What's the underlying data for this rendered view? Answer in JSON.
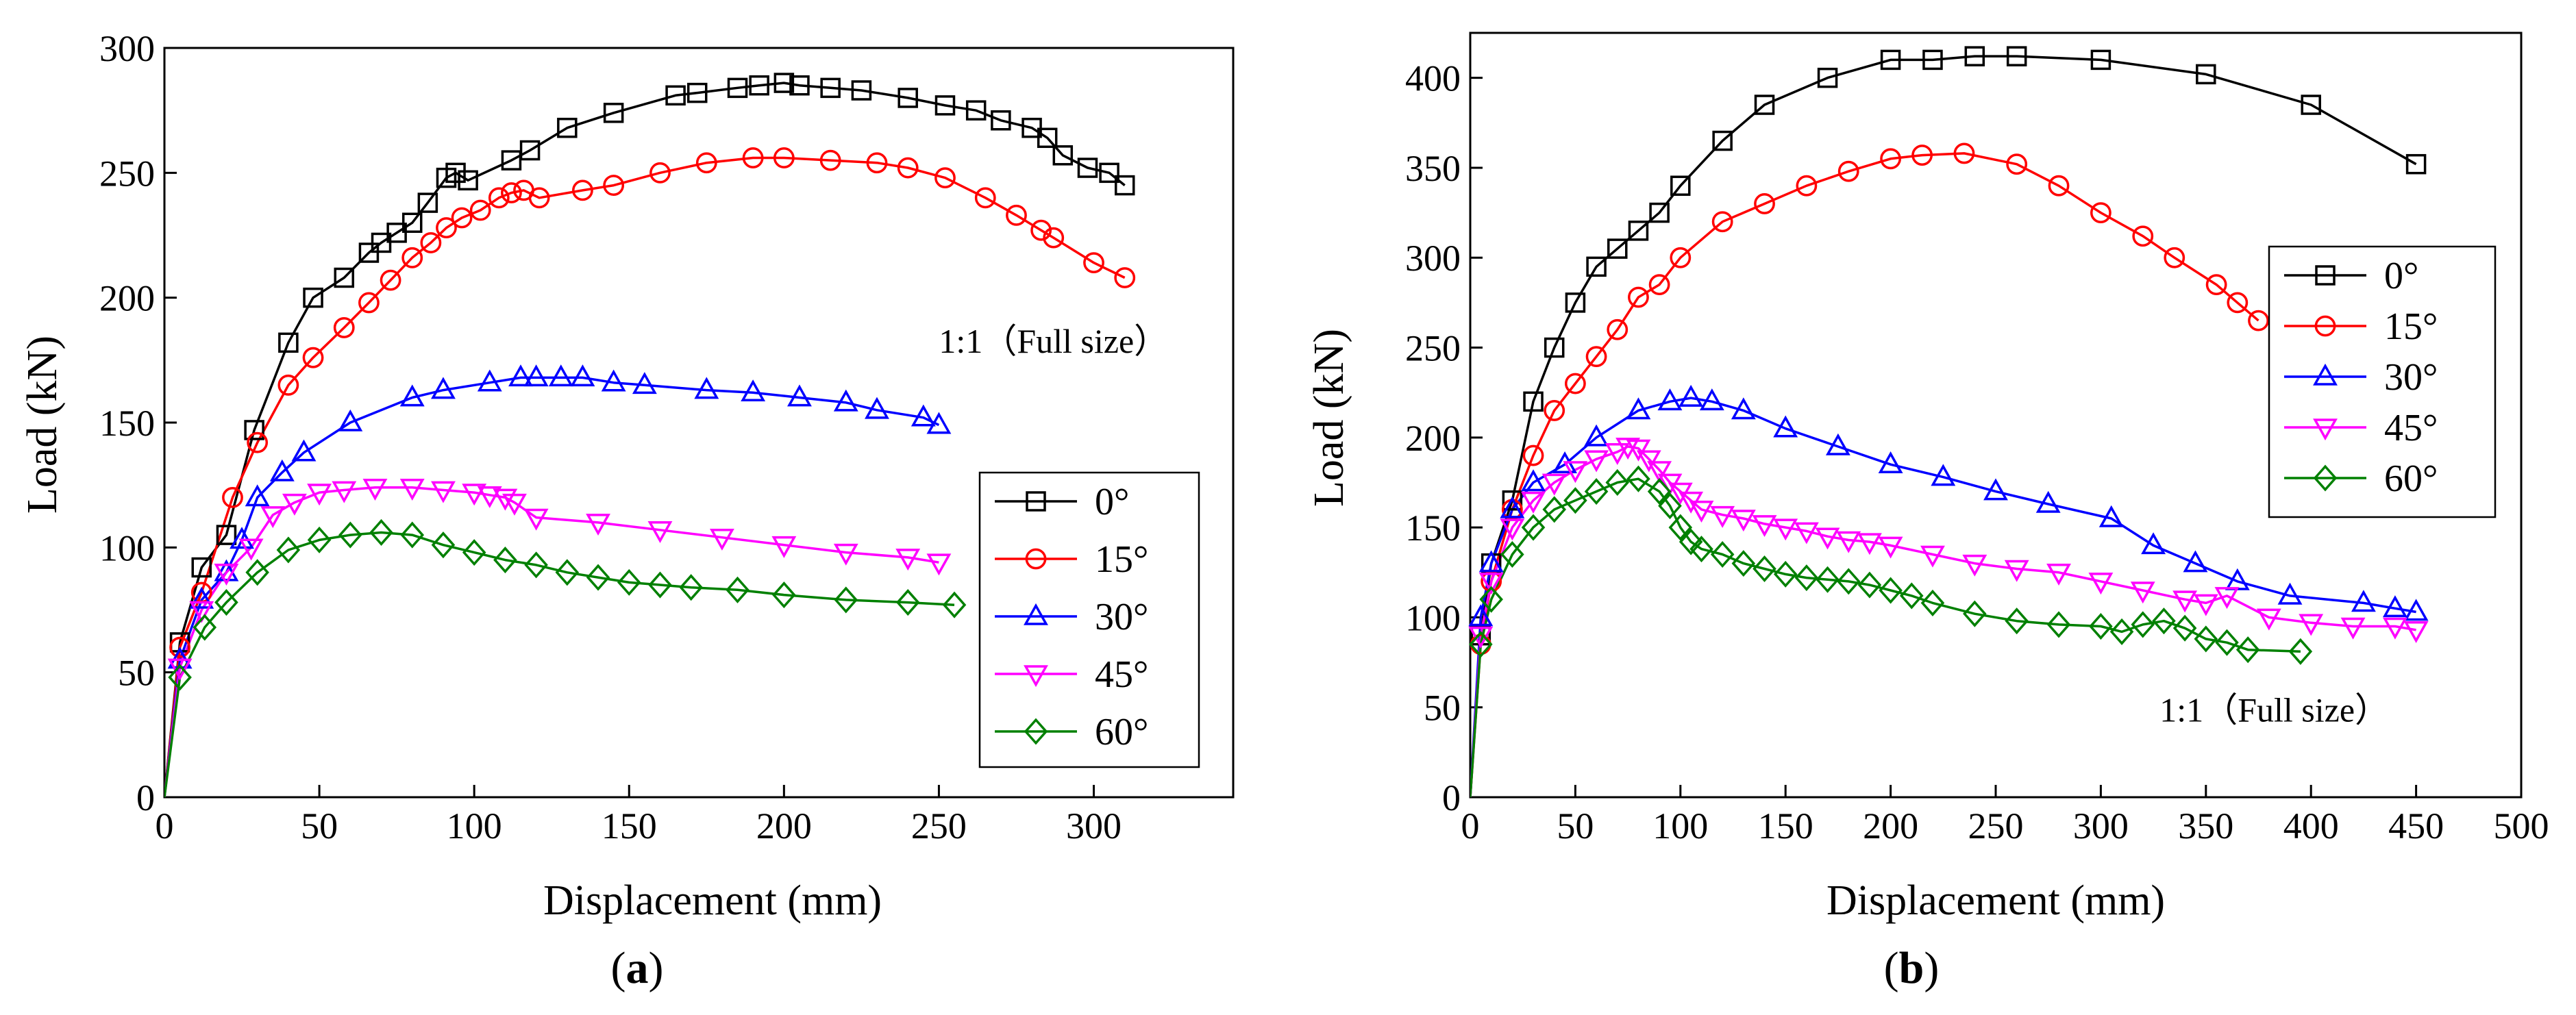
{
  "chart_data": [
    {
      "id": "a",
      "type": "line",
      "caption": {
        "open": "(",
        "letter": "a",
        "close": ")"
      },
      "xlabel": "Displacement (mm)",
      "ylabel": "Load (kN)",
      "xlim": [
        0,
        345
      ],
      "ylim": [
        0,
        300
      ],
      "xticks": [
        0,
        50,
        100,
        150,
        200,
        250,
        300
      ],
      "yticks": [
        0,
        50,
        100,
        150,
        200,
        250,
        300
      ],
      "annotation": "1:1（Full size）",
      "annotation_at": [
        250,
        178
      ],
      "legend_position": "center-right",
      "series": [
        {
          "name": "0°",
          "color": "#000000",
          "marker": "square",
          "x": [
            0,
            5,
            12,
            20,
            29,
            40,
            48,
            58,
            66,
            70,
            75,
            80,
            85,
            91,
            94,
            98,
            112,
            118,
            130,
            145,
            165,
            172,
            185,
            192,
            200,
            205,
            215,
            225,
            240,
            252,
            262,
            270,
            280,
            285,
            290,
            298,
            305,
            310
          ],
          "y": [
            0,
            62,
            92,
            105,
            147,
            182,
            200,
            208,
            218,
            222,
            226,
            230,
            238,
            248,
            250,
            247,
            255,
            259,
            268,
            274,
            281,
            282,
            284,
            285,
            286,
            285,
            284,
            283,
            280,
            277,
            275,
            271,
            268,
            264,
            257,
            252,
            250,
            245
          ]
        },
        {
          "name": "15°",
          "color": "#ff0000",
          "marker": "circle",
          "x": [
            0,
            5,
            12,
            22,
            30,
            40,
            48,
            58,
            66,
            73,
            80,
            86,
            91,
            96,
            102,
            108,
            112,
            116,
            121,
            135,
            145,
            160,
            175,
            190,
            200,
            215,
            230,
            240,
            252,
            265,
            275,
            283,
            287,
            300,
            310
          ],
          "y": [
            0,
            60,
            82,
            120,
            142,
            165,
            176,
            188,
            198,
            207,
            216,
            222,
            228,
            232,
            235,
            240,
            242,
            243,
            240,
            243,
            245,
            250,
            254,
            256,
            256,
            255,
            254,
            252,
            248,
            240,
            233,
            227,
            224,
            214,
            208
          ]
        },
        {
          "name": "30°",
          "color": "#0000ff",
          "marker": "triangle-up",
          "x": [
            0,
            5,
            12,
            20,
            25,
            30,
            38,
            45,
            60,
            80,
            90,
            105,
            115,
            120,
            128,
            135,
            145,
            155,
            175,
            190,
            205,
            220,
            230,
            245,
            250
          ],
          "y": [
            0,
            55,
            79,
            90,
            103,
            120,
            130,
            138,
            150,
            160,
            163,
            166,
            168,
            168,
            168,
            168,
            166,
            165,
            163,
            162,
            160,
            158,
            155,
            152,
            149
          ]
        },
        {
          "name": "45°",
          "color": "#ff00ff",
          "marker": "triangle-down",
          "x": [
            0,
            5,
            12,
            20,
            28,
            35,
            42,
            50,
            58,
            68,
            80,
            90,
            100,
            105,
            110,
            113,
            120,
            140,
            160,
            180,
            200,
            220,
            240,
            250
          ],
          "y": [
            0,
            52,
            75,
            90,
            100,
            113,
            118,
            122,
            123,
            124,
            124,
            123,
            122,
            121,
            120,
            118,
            112,
            110,
            107,
            104,
            101,
            98,
            96,
            94
          ]
        },
        {
          "name": "60°",
          "color": "#008000",
          "marker": "diamond",
          "x": [
            0,
            5,
            13,
            20,
            30,
            40,
            50,
            60,
            70,
            80,
            90,
            100,
            110,
            120,
            130,
            140,
            150,
            160,
            170,
            185,
            200,
            220,
            240,
            255
          ],
          "y": [
            0,
            48,
            68,
            78,
            90,
            99,
            103,
            105,
            106,
            105,
            101,
            98,
            95,
            93,
            90,
            88,
            86,
            85,
            84,
            83,
            81,
            79,
            78,
            77
          ]
        }
      ]
    },
    {
      "id": "b",
      "type": "line",
      "caption": {
        "open": "(",
        "letter": "b",
        "close": ")"
      },
      "xlabel": "Displacement (mm)",
      "ylabel": "Load (kN)",
      "xlim": [
        0,
        500
      ],
      "ylim": [
        0,
        425
      ],
      "xticks": [
        0,
        50,
        100,
        150,
        200,
        250,
        300,
        350,
        400,
        450,
        500
      ],
      "yticks": [
        0,
        50,
        100,
        150,
        200,
        250,
        300,
        350,
        400
      ],
      "annotation": "1:1（Full size）",
      "annotation_at": [
        328,
        42
      ],
      "legend_position": "top-right",
      "series": [
        {
          "name": "0°",
          "color": "#000000",
          "marker": "square",
          "x": [
            0,
            5,
            10,
            20,
            30,
            40,
            50,
            60,
            70,
            80,
            90,
            100,
            120,
            140,
            170,
            200,
            220,
            240,
            260,
            300,
            350,
            400,
            450
          ],
          "y": [
            0,
            90,
            130,
            165,
            220,
            250,
            275,
            295,
            305,
            315,
            325,
            340,
            365,
            385,
            400,
            410,
            410,
            412,
            412,
            410,
            402,
            385,
            352
          ]
        },
        {
          "name": "15°",
          "color": "#ff0000",
          "marker": "circle",
          "x": [
            0,
            5,
            10,
            20,
            30,
            40,
            50,
            60,
            70,
            80,
            90,
            100,
            120,
            140,
            160,
            180,
            200,
            215,
            235,
            260,
            280,
            300,
            320,
            335,
            355,
            365,
            375
          ],
          "y": [
            0,
            85,
            120,
            160,
            190,
            215,
            230,
            245,
            260,
            278,
            285,
            300,
            320,
            330,
            340,
            348,
            355,
            357,
            358,
            352,
            340,
            325,
            312,
            300,
            285,
            275,
            265
          ]
        },
        {
          "name": "30°",
          "color": "#0000ff",
          "marker": "triangle-up",
          "x": [
            0,
            5,
            10,
            20,
            30,
            45,
            60,
            80,
            95,
            105,
            115,
            130,
            150,
            175,
            200,
            225,
            250,
            275,
            305,
            325,
            345,
            365,
            390,
            425,
            440,
            450
          ],
          "y": [
            0,
            100,
            130,
            160,
            175,
            185,
            200,
            215,
            220,
            222,
            220,
            215,
            205,
            195,
            185,
            178,
            170,
            163,
            155,
            140,
            130,
            120,
            112,
            108,
            105,
            103
          ]
        },
        {
          "name": "45°",
          "color": "#ff00ff",
          "marker": "triangle-down",
          "x": [
            0,
            5,
            10,
            20,
            30,
            40,
            50,
            60,
            70,
            75,
            80,
            85,
            90,
            95,
            100,
            105,
            110,
            120,
            130,
            140,
            150,
            160,
            170,
            180,
            190,
            200,
            220,
            240,
            260,
            280,
            300,
            320,
            340,
            350,
            360,
            380,
            400,
            420,
            440,
            450
          ],
          "y": [
            0,
            90,
            120,
            150,
            165,
            175,
            182,
            188,
            192,
            195,
            194,
            188,
            182,
            175,
            170,
            165,
            160,
            157,
            155,
            152,
            150,
            148,
            145,
            143,
            142,
            140,
            135,
            130,
            127,
            125,
            120,
            115,
            110,
            108,
            112,
            100,
            97,
            95,
            95,
            93
          ]
        },
        {
          "name": "60°",
          "color": "#008000",
          "marker": "diamond",
          "x": [
            0,
            5,
            10,
            20,
            30,
            40,
            50,
            60,
            70,
            80,
            90,
            95,
            100,
            105,
            110,
            120,
            130,
            140,
            150,
            160,
            170,
            180,
            190,
            200,
            210,
            220,
            240,
            260,
            280,
            300,
            310,
            320,
            330,
            340,
            350,
            360,
            370,
            395
          ],
          "y": [
            0,
            85,
            110,
            135,
            150,
            160,
            165,
            170,
            175,
            177,
            170,
            162,
            150,
            142,
            138,
            135,
            130,
            127,
            124,
            122,
            121,
            120,
            118,
            115,
            112,
            108,
            102,
            98,
            96,
            95,
            92,
            96,
            98,
            94,
            88,
            86,
            82,
            81
          ]
        }
      ]
    }
  ]
}
